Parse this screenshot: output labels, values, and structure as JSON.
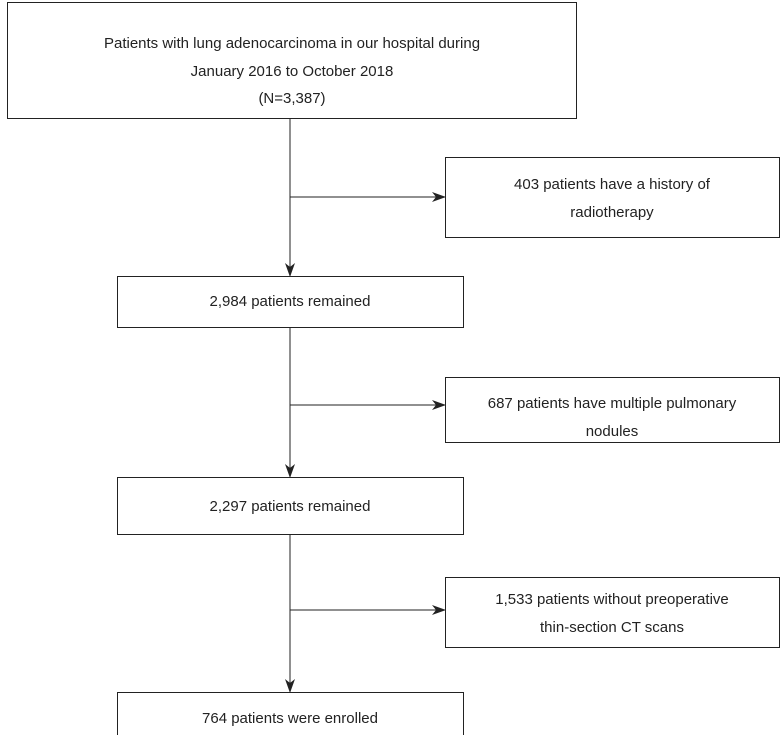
{
  "nodes": [
    {
      "lines": [
        "Patients with lung adenocarcinoma in our hospital during",
        "January 2016 to October 2018",
        "(N=3,387)"
      ]
    },
    {
      "lines": [
        "403 patients have a history of",
        "radiotherapy"
      ]
    },
    {
      "lines": [
        "2,984 patients remained"
      ]
    },
    {
      "lines": [
        "687 patients have multiple pulmonary",
        "nodules"
      ]
    },
    {
      "lines": [
        "2,297 patients remained"
      ]
    },
    {
      "lines": [
        "1,533 patients without preoperative",
        "thin-section CT scans"
      ]
    },
    {
      "lines": [
        "764 patients were enrolled"
      ]
    }
  ]
}
